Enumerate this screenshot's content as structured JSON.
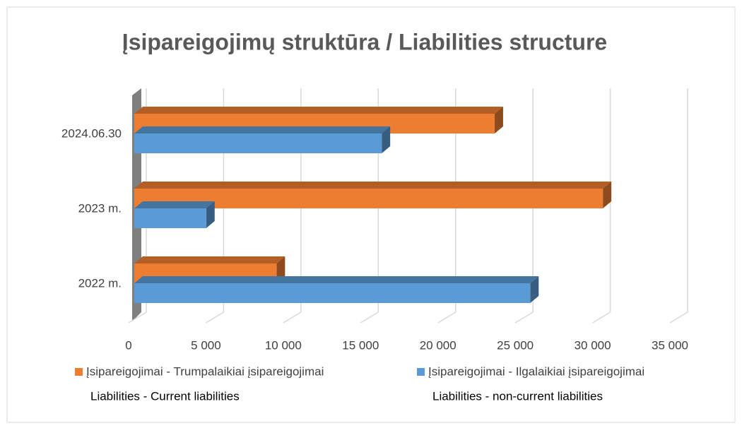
{
  "chart_data": {
    "type": "bar3d_horizontal",
    "title": "Įsipareigojimų struktūra / Liabilities structure",
    "categories": [
      "2022 m.",
      "2023 m.",
      "2024.06.30"
    ],
    "series": [
      {
        "name": "Įsipareigojimai - Trumpalaikiai įsipareigojimai",
        "subname": "Liabilities - Current liabilities",
        "color": "#ed7d31",
        "values": [
          9200,
          30300,
          23300
        ]
      },
      {
        "name": "Įsipareigojimai - Ilgalaikiai įsipareigojimai",
        "subname": "Liabilities - non-current liabilities",
        "color": "#5b9bd5",
        "values": [
          25600,
          4650,
          16000
        ]
      }
    ],
    "xlim": [
      0,
      35000
    ],
    "xticks": [
      0,
      {
        "value": 5000,
        "label": "5 000"
      },
      {
        "value": 10000,
        "label": "10 000"
      },
      {
        "value": 15000,
        "label": "15 000"
      },
      {
        "value": 20000,
        "label": "20 000"
      },
      {
        "value": 25000,
        "label": "25 000"
      },
      {
        "value": 30000,
        "label": "30 000"
      },
      {
        "value": 35000,
        "label": "35 000"
      }
    ],
    "grid": true,
    "legend": "bottom"
  }
}
